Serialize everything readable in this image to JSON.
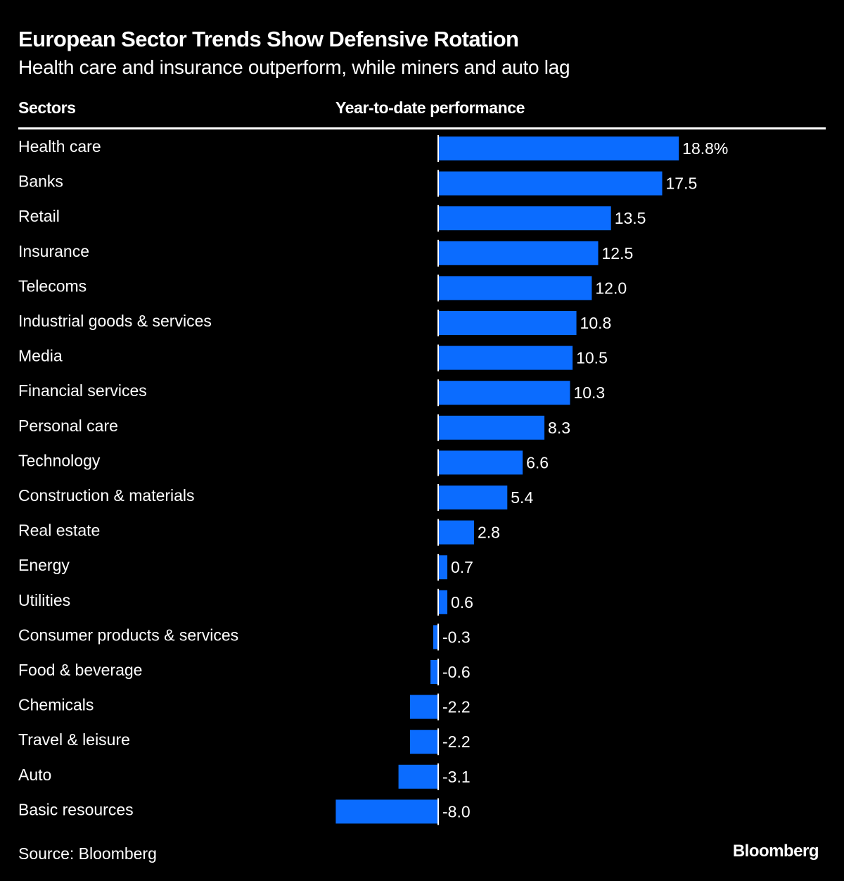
{
  "header": {
    "title": "European Sector Trends Show Defensive Rotation",
    "subtitle": "Health care and insurance outperform, while miners and auto lag"
  },
  "columns": {
    "sectors": "Sectors",
    "performance": "Year-to-date performance"
  },
  "footer": {
    "source": "Source: Bloomberg",
    "logo": "Bloomberg"
  },
  "colors": {
    "bar": "#0b6cff",
    "background": "#000000",
    "text": "#ffffff"
  },
  "chart_data": {
    "type": "bar",
    "orientation": "horizontal",
    "title": "European Sector Trends Show Defensive Rotation",
    "subtitle": "Health care and insurance outperform, while miners and auto lag",
    "xlabel": "Year-to-date performance",
    "ylabel": "Sectors",
    "unit": "%",
    "grid": false,
    "categories": [
      "Health care",
      "Banks",
      "Retail",
      "Insurance",
      "Telecoms",
      "Industrial goods & services",
      "Media",
      "Financial services",
      "Personal care",
      "Technology",
      "Construction & materials",
      "Real estate",
      "Energy",
      "Utilities",
      "Consumer products & services",
      "Food & beverage",
      "Chemicals",
      "Travel & leisure",
      "Auto",
      "Basic resources"
    ],
    "values": [
      18.8,
      17.5,
      13.5,
      12.5,
      12.0,
      10.8,
      10.5,
      10.3,
      8.3,
      6.6,
      5.4,
      2.8,
      0.7,
      0.6,
      -0.3,
      -0.6,
      -2.2,
      -2.2,
      -3.1,
      -8.0
    ],
    "labels": [
      "18.8%",
      "17.5",
      "13.5",
      "12.5",
      "12.0",
      "10.8",
      "10.5",
      "10.3",
      "8.3",
      "6.6",
      "5.4",
      "2.8",
      "0.7",
      "0.6",
      "-0.3",
      "-0.6",
      "-2.2",
      "-2.2",
      "-3.1",
      "-8.0"
    ],
    "xlim": [
      -8.0,
      18.8
    ]
  }
}
